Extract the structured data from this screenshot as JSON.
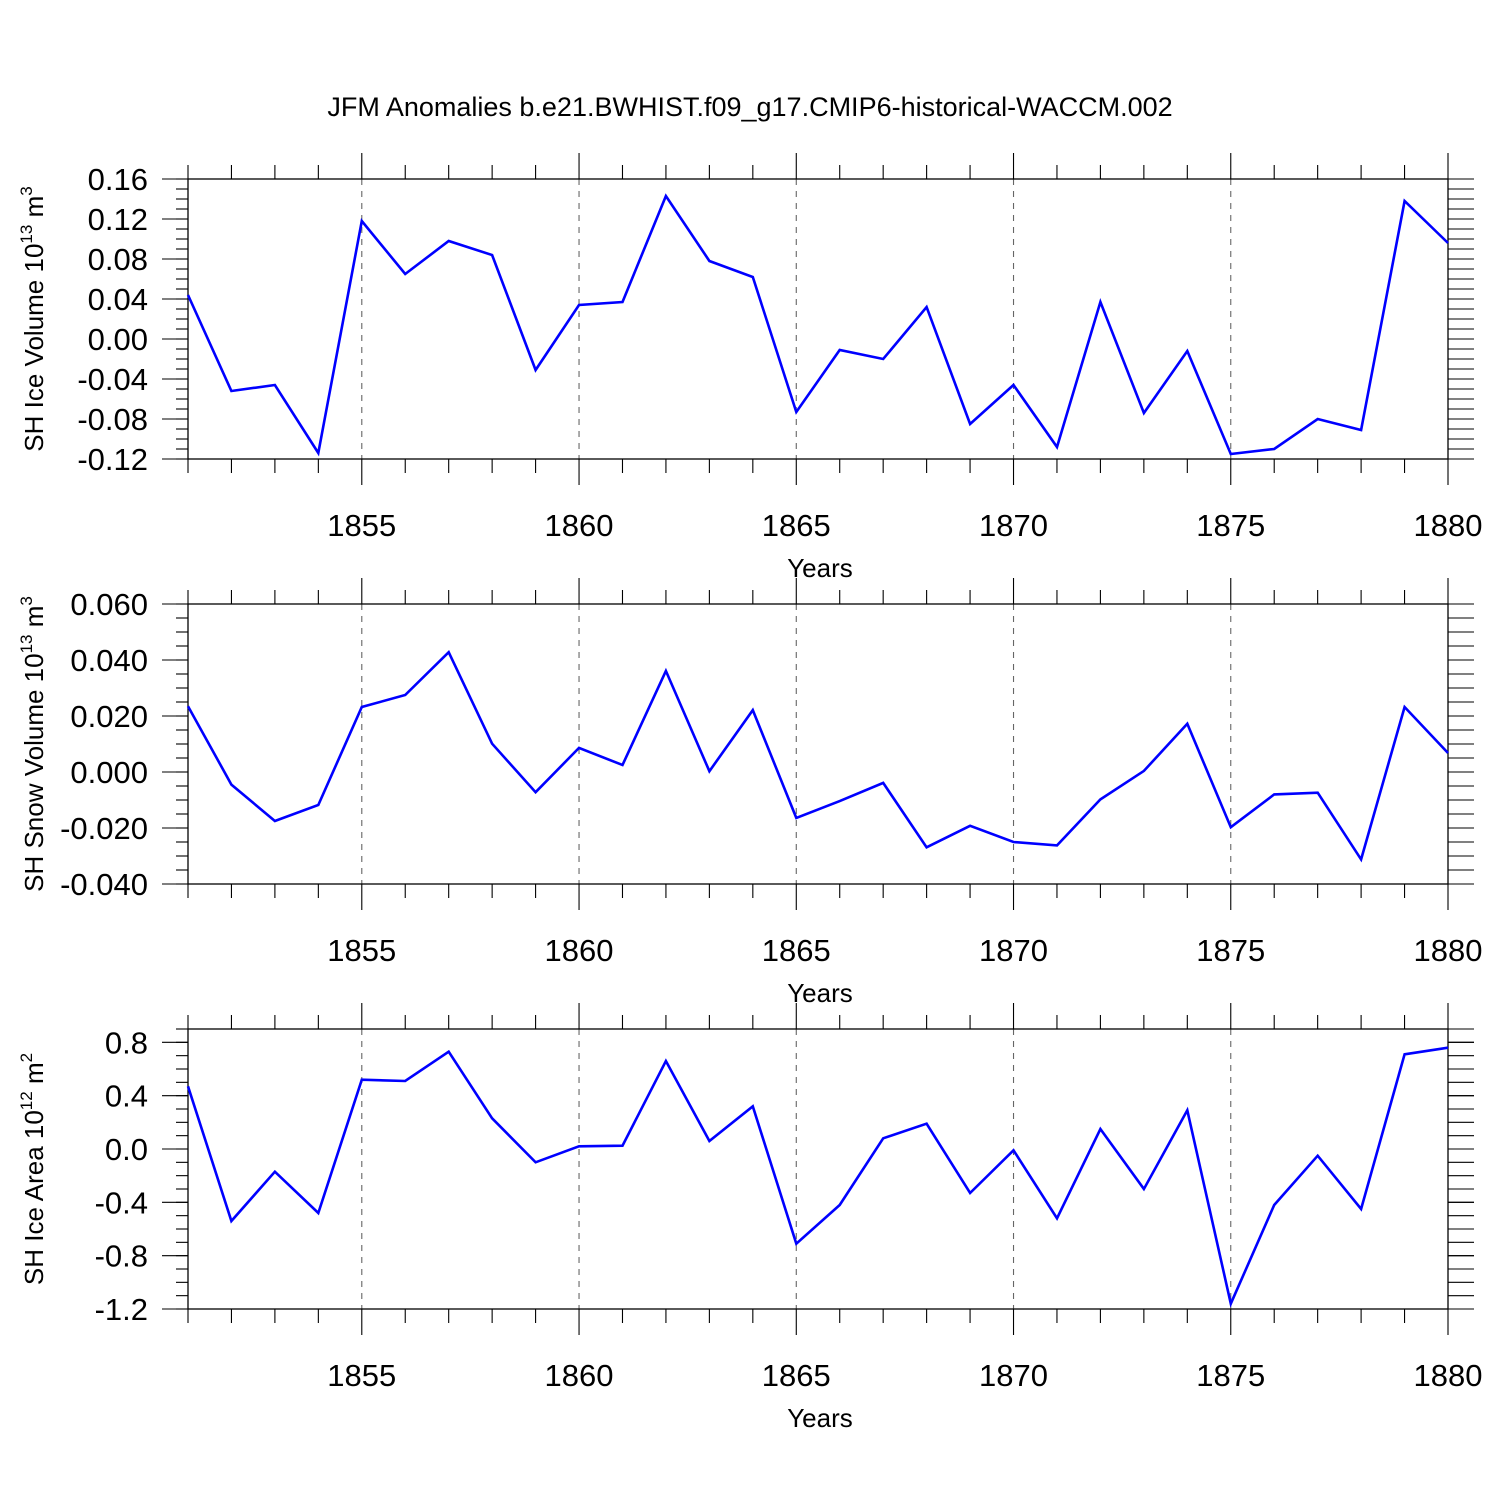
{
  "title": "JFM Anomalies b.e21.BWHIST.f09_g17.CMIP6-historical-WACCM.002",
  "chart_data": [
    {
      "type": "line",
      "xlabel": "Years",
      "ylabel": {
        "prefix": "SH Ice Volume 10",
        "exponent": "13",
        "unit": " m",
        "unit_exponent": "3"
      },
      "x_ticks": [
        1855,
        1860,
        1865,
        1870,
        1875,
        1880
      ],
      "y_ticks": [
        "0.16",
        "0.12",
        "0.08",
        "0.04",
        "0.00",
        "-0.04",
        "-0.08",
        "-0.12"
      ],
      "xlim": [
        1851,
        1880
      ],
      "ylim": [
        -0.12,
        0.16
      ],
      "y_minor_step": 0.01,
      "x_grid": [
        1855,
        1860,
        1865,
        1870,
        1875
      ],
      "series_color": "#0000ff",
      "x": [
        1851,
        1852,
        1853,
        1854,
        1855,
        1856,
        1857,
        1858,
        1859,
        1860,
        1861,
        1862,
        1863,
        1864,
        1865,
        1866,
        1867,
        1868,
        1869,
        1870,
        1871,
        1872,
        1873,
        1874,
        1875,
        1876,
        1877,
        1878,
        1879,
        1880
      ],
      "values": [
        0.044,
        -0.052,
        -0.046,
        -0.114,
        0.118,
        0.065,
        0.098,
        0.084,
        -0.031,
        0.034,
        0.037,
        0.143,
        0.078,
        0.062,
        -0.073,
        -0.011,
        -0.02,
        0.032,
        -0.085,
        -0.046,
        -0.108,
        0.037,
        -0.074,
        -0.012,
        -0.115,
        -0.11,
        -0.08,
        -0.091,
        0.138,
        0.096
      ]
    },
    {
      "type": "line",
      "xlabel": "Years",
      "ylabel": {
        "prefix": "SH Snow Volume 10",
        "exponent": "13",
        "unit": " m",
        "unit_exponent": "3"
      },
      "x_ticks": [
        1855,
        1860,
        1865,
        1870,
        1875,
        1880
      ],
      "y_ticks": [
        "0.060",
        "0.040",
        "0.020",
        "0.000",
        "-0.020",
        "-0.040"
      ],
      "xlim": [
        1851,
        1880
      ],
      "ylim": [
        -0.04,
        0.06
      ],
      "y_minor_step": 0.005,
      "x_grid": [
        1855,
        1860,
        1865,
        1870,
        1875
      ],
      "series_color": "#0000ff",
      "x": [
        1851,
        1852,
        1853,
        1854,
        1855,
        1856,
        1857,
        1858,
        1859,
        1860,
        1861,
        1862,
        1863,
        1864,
        1865,
        1866,
        1867,
        1868,
        1869,
        1870,
        1871,
        1872,
        1873,
        1874,
        1875,
        1876,
        1877,
        1878,
        1879,
        1880
      ],
      "values": [
        0.0235,
        -0.0045,
        -0.0175,
        -0.0118,
        0.0232,
        0.0275,
        0.0428,
        0.0101,
        -0.0072,
        0.0086,
        0.0025,
        0.0361,
        0.0003,
        0.0221,
        -0.0164,
        -0.0104,
        -0.0039,
        -0.0269,
        -0.0192,
        -0.025,
        -0.0262,
        -0.0098,
        0.0004,
        0.0172,
        -0.0197,
        -0.008,
        -0.0074,
        -0.0312,
        0.0232,
        0.0068
      ]
    },
    {
      "type": "line",
      "xlabel": "Years",
      "ylabel": {
        "prefix": "SH Ice Area 10",
        "exponent": "12",
        "unit": " m",
        "unit_exponent": "2"
      },
      "x_ticks": [
        1855,
        1860,
        1865,
        1870,
        1875,
        1880
      ],
      "y_ticks": [
        "0.8",
        "0.4",
        "0.0",
        "-0.4",
        "-0.8",
        "-1.2"
      ],
      "xlim": [
        1851,
        1880
      ],
      "ylim": [
        -1.2,
        0.9
      ],
      "y_minor_step": 0.1,
      "x_grid": [
        1855,
        1860,
        1865,
        1870,
        1875
      ],
      "series_color": "#0000ff",
      "x": [
        1851,
        1852,
        1853,
        1854,
        1855,
        1856,
        1857,
        1858,
        1859,
        1860,
        1861,
        1862,
        1863,
        1864,
        1865,
        1866,
        1867,
        1868,
        1869,
        1870,
        1871,
        1872,
        1873,
        1874,
        1875,
        1876,
        1877,
        1878,
        1879,
        1880
      ],
      "values": [
        0.47,
        -0.54,
        -0.17,
        -0.48,
        0.52,
        0.51,
        0.73,
        0.23,
        -0.1,
        0.02,
        0.025,
        0.66,
        0.06,
        0.32,
        -0.71,
        -0.42,
        0.08,
        0.19,
        -0.33,
        -0.01,
        -0.52,
        0.15,
        -0.3,
        0.29,
        -1.16,
        -0.42,
        -0.05,
        -0.45,
        0.71,
        0.76
      ]
    }
  ]
}
